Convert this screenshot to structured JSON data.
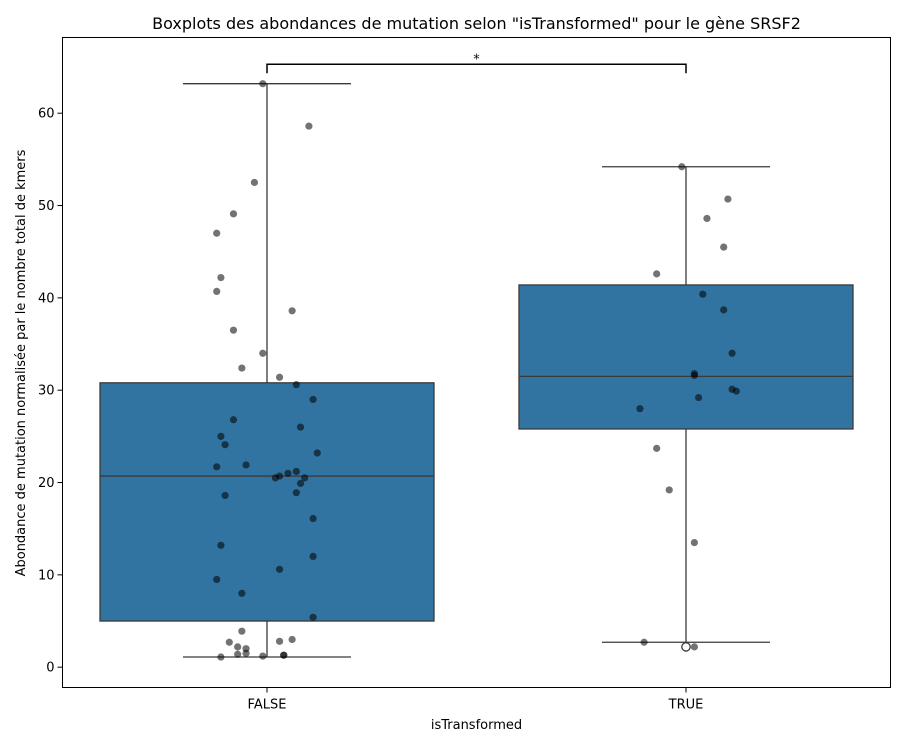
{
  "chart_data": {
    "type": "box",
    "title": "Boxplots des abondances de mutation selon \"isTransformed\" pour le gène SRSF2",
    "xlabel": "isTransformed",
    "ylabel": "Abondance de mutation normalisée par le nombre total de kmers",
    "ylim": [
      -2.2,
      68.2
    ],
    "yticks": [
      0,
      10,
      20,
      30,
      40,
      50,
      60
    ],
    "grid": false,
    "categories": [
      "FALSE",
      "TRUE"
    ],
    "box_color": "#3274a1",
    "point_color": "#000000",
    "boxes": [
      {
        "category": "FALSE",
        "whisker_low": 1.1,
        "q1": 5.0,
        "median": 20.7,
        "q3": 30.8,
        "whisker_high": 63.2,
        "outliers": []
      },
      {
        "category": "TRUE",
        "whisker_low": 2.7,
        "q1": 25.8,
        "median": 31.5,
        "q3": 41.4,
        "whisker_high": 54.2,
        "outliers": [
          2.2
        ]
      }
    ],
    "points": [
      {
        "category": "FALSE",
        "values": [
          {
            "y": 63.2,
            "dx": -0.01
          },
          {
            "y": 58.6,
            "dx": 0.1
          },
          {
            "y": 52.5,
            "dx": -0.03
          },
          {
            "y": 49.1,
            "dx": -0.08
          },
          {
            "y": 47.0,
            "dx": -0.12
          },
          {
            "y": 42.2,
            "dx": -0.11
          },
          {
            "y": 40.7,
            "dx": -0.12
          },
          {
            "y": 38.6,
            "dx": 0.06
          },
          {
            "y": 36.5,
            "dx": -0.08
          },
          {
            "y": 34.0,
            "dx": -0.01
          },
          {
            "y": 32.4,
            "dx": -0.06
          },
          {
            "y": 31.4,
            "dx": 0.03
          },
          {
            "y": 30.6,
            "dx": 0.07
          },
          {
            "y": 29.0,
            "dx": 0.11
          },
          {
            "y": 26.8,
            "dx": -0.08
          },
          {
            "y": 26.0,
            "dx": 0.08
          },
          {
            "y": 25.0,
            "dx": -0.11
          },
          {
            "y": 24.1,
            "dx": -0.1
          },
          {
            "y": 23.2,
            "dx": 0.12
          },
          {
            "y": 21.9,
            "dx": -0.05
          },
          {
            "y": 21.7,
            "dx": -0.12
          },
          {
            "y": 21.2,
            "dx": 0.07
          },
          {
            "y": 21.0,
            "dx": 0.05
          },
          {
            "y": 20.7,
            "dx": 0.03
          },
          {
            "y": 20.5,
            "dx": 0.02
          },
          {
            "y": 20.5,
            "dx": 0.09
          },
          {
            "y": 19.9,
            "dx": 0.08
          },
          {
            "y": 18.9,
            "dx": 0.07
          },
          {
            "y": 18.6,
            "dx": -0.1
          },
          {
            "y": 16.1,
            "dx": 0.11
          },
          {
            "y": 13.2,
            "dx": -0.11
          },
          {
            "y": 12.0,
            "dx": 0.11
          },
          {
            "y": 10.6,
            "dx": 0.03
          },
          {
            "y": 9.5,
            "dx": -0.12
          },
          {
            "y": 8.0,
            "dx": -0.06
          },
          {
            "y": 5.4,
            "dx": 0.11
          },
          {
            "y": 3.9,
            "dx": -0.06
          },
          {
            "y": 3.0,
            "dx": 0.06
          },
          {
            "y": 2.8,
            "dx": 0.03
          },
          {
            "y": 2.7,
            "dx": -0.09
          },
          {
            "y": 2.2,
            "dx": -0.07
          },
          {
            "y": 2.0,
            "dx": -0.05
          },
          {
            "y": 1.5,
            "dx": -0.05
          },
          {
            "y": 1.4,
            "dx": -0.07
          },
          {
            "y": 1.3,
            "dx": 0.04
          },
          {
            "y": 1.3,
            "dx": 0.04
          },
          {
            "y": 1.2,
            "dx": -0.01
          },
          {
            "y": 1.1,
            "dx": -0.11
          }
        ]
      },
      {
        "category": "TRUE",
        "values": [
          {
            "y": 54.2,
            "dx": -0.01
          },
          {
            "y": 50.7,
            "dx": 0.1
          },
          {
            "y": 48.6,
            "dx": 0.05
          },
          {
            "y": 45.5,
            "dx": 0.09
          },
          {
            "y": 42.6,
            "dx": -0.07
          },
          {
            "y": 40.4,
            "dx": 0.04
          },
          {
            "y": 38.7,
            "dx": 0.09
          },
          {
            "y": 34.0,
            "dx": 0.11
          },
          {
            "y": 31.8,
            "dx": 0.02
          },
          {
            "y": 31.6,
            "dx": 0.02
          },
          {
            "y": 30.1,
            "dx": 0.11
          },
          {
            "y": 29.9,
            "dx": 0.12
          },
          {
            "y": 29.2,
            "dx": 0.03
          },
          {
            "y": 28.0,
            "dx": -0.11
          },
          {
            "y": 23.7,
            "dx": -0.07
          },
          {
            "y": 19.2,
            "dx": -0.04
          },
          {
            "y": 13.5,
            "dx": 0.02
          },
          {
            "y": 2.7,
            "dx": -0.1
          },
          {
            "y": 2.2,
            "dx": 0.02
          }
        ]
      }
    ],
    "annotation": {
      "text": "*",
      "y": 65.3,
      "between": [
        "FALSE",
        "TRUE"
      ]
    }
  }
}
